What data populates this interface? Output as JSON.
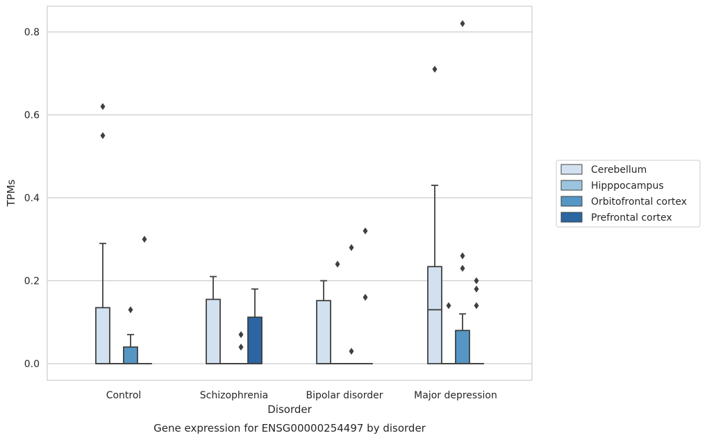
{
  "figure_title": "Gene expression for ENSG00000254497 by disorder",
  "chart_data": {
    "type": "box",
    "xlabel": "Disorder",
    "ylabel": "TPMs",
    "ylim": [
      -0.04,
      0.86
    ],
    "yticks": [
      "0.0",
      "0.2",
      "0.4",
      "0.6",
      "0.8"
    ],
    "grid": true,
    "legend_position": "right",
    "categories": [
      "Control",
      "Schizophrenia",
      "Bipolar disorder",
      "Major depression"
    ],
    "series": [
      {
        "name": "Cerebellum",
        "color": "#d2e1f0",
        "boxes": [
          {
            "q1": 0.0,
            "median": 0.0,
            "q3": 0.135,
            "whisker_low": 0.0,
            "whisker_high": 0.29,
            "outliers": [
              0.62,
              0.55
            ]
          },
          {
            "q1": 0.0,
            "median": 0.0,
            "q3": 0.155,
            "whisker_low": 0.0,
            "whisker_high": 0.21,
            "outliers": []
          },
          {
            "q1": 0.0,
            "median": 0.0,
            "q3": 0.152,
            "whisker_low": 0.0,
            "whisker_high": 0.2,
            "outliers": []
          },
          {
            "q1": 0.0,
            "median": 0.13,
            "q3": 0.234,
            "whisker_low": 0.0,
            "whisker_high": 0.43,
            "outliers": [
              0.71
            ]
          }
        ]
      },
      {
        "name": "Hipppocampus",
        "color": "#9cc4de",
        "boxes": [
          {
            "q1": 0.0,
            "median": 0.0,
            "q3": 0.0,
            "whisker_low": 0.0,
            "whisker_high": 0.0,
            "outliers": []
          },
          {
            "q1": 0.0,
            "median": 0.0,
            "q3": 0.0,
            "whisker_low": 0.0,
            "whisker_high": 0.0,
            "outliers": []
          },
          {
            "q1": 0.0,
            "median": 0.0,
            "q3": 0.0,
            "whisker_low": 0.0,
            "whisker_high": 0.0,
            "outliers": [
              0.24
            ]
          },
          {
            "q1": 0.0,
            "median": 0.0,
            "q3": 0.0,
            "whisker_low": 0.0,
            "whisker_high": 0.0,
            "outliers": [
              0.14
            ]
          }
        ]
      },
      {
        "name": "Orbitofrontal cortex",
        "color": "#5596c4",
        "boxes": [
          {
            "q1": 0.0,
            "median": 0.0,
            "q3": 0.04,
            "whisker_low": 0.0,
            "whisker_high": 0.07,
            "outliers": [
              0.13
            ]
          },
          {
            "q1": 0.0,
            "median": 0.0,
            "q3": 0.0,
            "whisker_low": 0.0,
            "whisker_high": 0.0,
            "outliers": [
              0.07,
              0.04
            ]
          },
          {
            "q1": 0.0,
            "median": 0.0,
            "q3": 0.0,
            "whisker_low": 0.0,
            "whisker_high": 0.0,
            "outliers": [
              0.28,
              0.03
            ]
          },
          {
            "q1": 0.0,
            "median": 0.0,
            "q3": 0.08,
            "whisker_low": 0.0,
            "whisker_high": 0.12,
            "outliers": [
              0.82,
              0.26,
              0.23
            ]
          }
        ]
      },
      {
        "name": "Prefrontal cortex",
        "color": "#2b65a2",
        "boxes": [
          {
            "q1": 0.0,
            "median": 0.0,
            "q3": 0.0,
            "whisker_low": 0.0,
            "whisker_high": 0.0,
            "outliers": [
              0.3
            ]
          },
          {
            "q1": 0.0,
            "median": 0.0,
            "q3": 0.112,
            "whisker_low": 0.0,
            "whisker_high": 0.18,
            "outliers": []
          },
          {
            "q1": 0.0,
            "median": 0.0,
            "q3": 0.0,
            "whisker_low": 0.0,
            "whisker_high": 0.0,
            "outliers": [
              0.32,
              0.16
            ]
          },
          {
            "q1": 0.0,
            "median": 0.0,
            "q3": 0.0,
            "whisker_low": 0.0,
            "whisker_high": 0.0,
            "outliers": [
              0.2,
              0.18,
              0.14
            ]
          }
        ]
      }
    ]
  },
  "colors": {
    "box_edge": "#3f3f3f",
    "grid": "#cccccc",
    "frame": "#cccccc",
    "text": "#262626"
  }
}
